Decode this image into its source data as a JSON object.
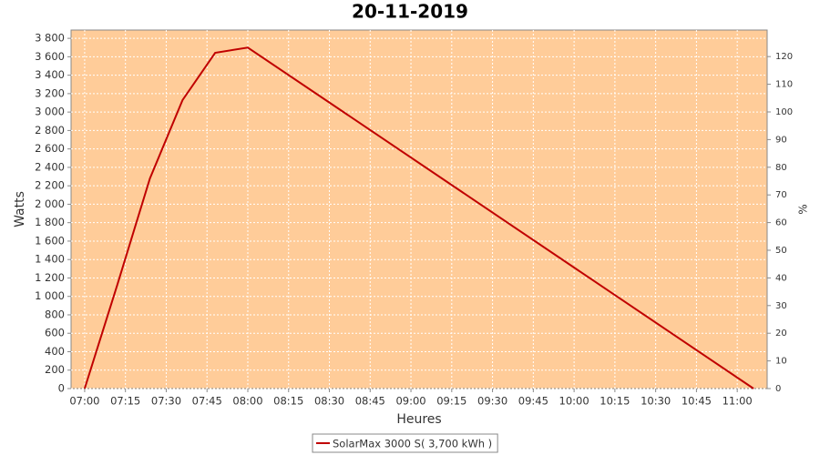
{
  "chart_data": {
    "type": "line",
    "title": "20-11-2019",
    "x_label": "Heures",
    "y_label": "Watts",
    "y2_label": "%",
    "x": [
      "07:00",
      "07:12",
      "07:24",
      "07:36",
      "07:48",
      "08:00",
      "11:06"
    ],
    "series": [
      {
        "name": "SolarMax 3000 S( 3,700 kWh )",
        "color": "#c00000",
        "values": [
          0,
          1125,
          2280,
          3130,
          3643,
          3700,
          0
        ]
      }
    ],
    "xlim": [
      "06:55",
      "11:11"
    ],
    "xticks": [
      "07:00",
      "07:15",
      "07:30",
      "07:45",
      "08:00",
      "08:15",
      "08:30",
      "08:45",
      "09:00",
      "09:15",
      "09:30",
      "09:45",
      "10:00",
      "10:15",
      "10:30",
      "10:45",
      "11:00"
    ],
    "ylim": [
      0,
      3890
    ],
    "yticks": [
      0,
      200,
      400,
      600,
      800,
      {
        "value": 1000,
        "label": "1 000"
      },
      {
        "value": 1200,
        "label": "1 200"
      },
      {
        "value": 1400,
        "label": "1 400"
      },
      {
        "value": 1600,
        "label": "1 600"
      },
      {
        "value": 1800,
        "label": "1 800"
      },
      {
        "value": 2000,
        "label": "2 000"
      },
      {
        "value": 2200,
        "label": "2 200"
      },
      {
        "value": 2400,
        "label": "2 400"
      },
      {
        "value": 2600,
        "label": "2 600"
      },
      {
        "value": 2800,
        "label": "2 800"
      },
      {
        "value": 3000,
        "label": "3 000"
      },
      {
        "value": 3200,
        "label": "3 200"
      },
      {
        "value": 3400,
        "label": "3 400"
      },
      {
        "value": 3600,
        "label": "3 600"
      },
      {
        "value": 3800,
        "label": "3 800"
      }
    ],
    "y2lim": [
      0,
      129.6
    ],
    "y2ticks": [
      0,
      10,
      20,
      30,
      40,
      50,
      60,
      70,
      80,
      90,
      100,
      110,
      120
    ],
    "grid": true,
    "background": "#ffcc99"
  }
}
